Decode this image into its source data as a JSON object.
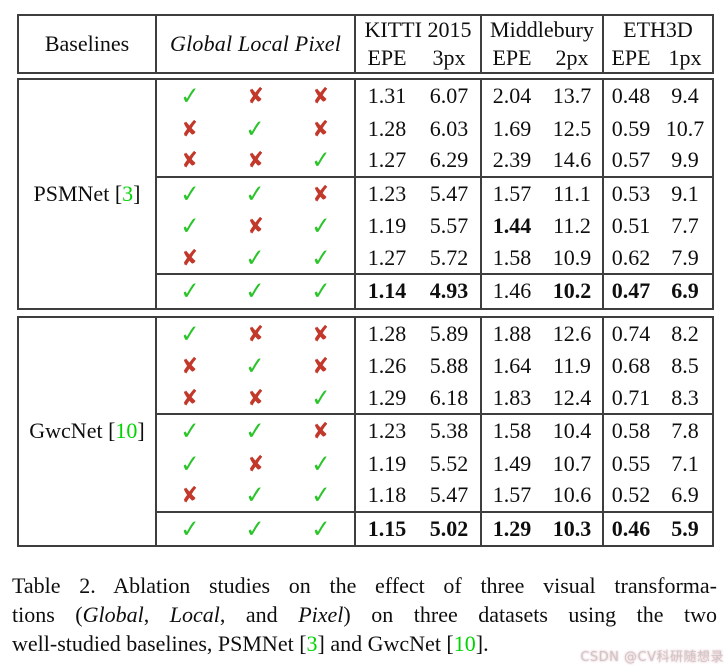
{
  "colors": {
    "check": "#2bc42b",
    "cross": "#c2382a",
    "ref_green": "#00d400",
    "border": "#3e3e3e",
    "watermark": "#c9c9c9"
  },
  "glyphs": {
    "check": "✓",
    "cross": "✘"
  },
  "table": {
    "corner_label": "Baselines",
    "transforms_label": "Global Local Pixel",
    "groups": [
      {
        "name": "KITTI 2015",
        "epe": "EPE",
        "px": "3px"
      },
      {
        "name": "Middlebury",
        "epe": "EPE",
        "px": "2px"
      },
      {
        "name": "ETH3D",
        "epe": "EPE",
        "px": "1px"
      }
    ],
    "sections": [
      {
        "baseline_name": "PSMNet",
        "baseline_ref": "3",
        "rows": [
          {
            "marks": [
              "check",
              "cross",
              "cross"
            ],
            "vals": [
              "1.31",
              "6.07",
              "2.04",
              "13.7",
              "0.48",
              "9.4"
            ],
            "bold": [
              0,
              0,
              0,
              0,
              0,
              0
            ]
          },
          {
            "marks": [
              "cross",
              "check",
              "cross"
            ],
            "vals": [
              "1.28",
              "6.03",
              "1.69",
              "12.5",
              "0.59",
              "10.7"
            ],
            "bold": [
              0,
              0,
              0,
              0,
              0,
              0
            ]
          },
          {
            "marks": [
              "cross",
              "cross",
              "check"
            ],
            "vals": [
              "1.27",
              "6.29",
              "2.39",
              "14.6",
              "0.57",
              "9.9"
            ],
            "bold": [
              0,
              0,
              0,
              0,
              0,
              0
            ]
          },
          {
            "marks": [
              "check",
              "check",
              "cross"
            ],
            "vals": [
              "1.23",
              "5.47",
              "1.57",
              "11.1",
              "0.53",
              "9.1"
            ],
            "bold": [
              0,
              0,
              0,
              0,
              0,
              0
            ]
          },
          {
            "marks": [
              "check",
              "cross",
              "check"
            ],
            "vals": [
              "1.19",
              "5.57",
              "1.44",
              "11.2",
              "0.51",
              "7.7"
            ],
            "bold": [
              0,
              0,
              1,
              0,
              0,
              0
            ]
          },
          {
            "marks": [
              "cross",
              "check",
              "check"
            ],
            "vals": [
              "1.27",
              "5.72",
              "1.58",
              "10.9",
              "0.62",
              "7.9"
            ],
            "bold": [
              0,
              0,
              0,
              0,
              0,
              0
            ]
          },
          {
            "marks": [
              "check",
              "check",
              "check"
            ],
            "vals": [
              "1.14",
              "4.93",
              "1.46",
              "10.2",
              "0.47",
              "6.9"
            ],
            "bold": [
              1,
              1,
              0,
              1,
              1,
              1
            ]
          }
        ]
      },
      {
        "baseline_name": "GwcNet",
        "baseline_ref": "10",
        "rows": [
          {
            "marks": [
              "check",
              "cross",
              "cross"
            ],
            "vals": [
              "1.28",
              "5.89",
              "1.88",
              "12.6",
              "0.74",
              "8.2"
            ],
            "bold": [
              0,
              0,
              0,
              0,
              0,
              0
            ]
          },
          {
            "marks": [
              "cross",
              "check",
              "cross"
            ],
            "vals": [
              "1.26",
              "5.88",
              "1.64",
              "11.9",
              "0.68",
              "8.5"
            ],
            "bold": [
              0,
              0,
              0,
              0,
              0,
              0
            ]
          },
          {
            "marks": [
              "cross",
              "cross",
              "check"
            ],
            "vals": [
              "1.29",
              "6.18",
              "1.83",
              "12.4",
              "0.71",
              "8.3"
            ],
            "bold": [
              0,
              0,
              0,
              0,
              0,
              0
            ]
          },
          {
            "marks": [
              "check",
              "check",
              "cross"
            ],
            "vals": [
              "1.23",
              "5.38",
              "1.58",
              "10.4",
              "0.58",
              "7.8"
            ],
            "bold": [
              0,
              0,
              0,
              0,
              0,
              0
            ]
          },
          {
            "marks": [
              "check",
              "cross",
              "check"
            ],
            "vals": [
              "1.19",
              "5.52",
              "1.49",
              "10.7",
              "0.55",
              "7.1"
            ],
            "bold": [
              0,
              0,
              0,
              0,
              0,
              0
            ]
          },
          {
            "marks": [
              "cross",
              "check",
              "check"
            ],
            "vals": [
              "1.18",
              "5.47",
              "1.57",
              "10.6",
              "0.52",
              "6.9"
            ],
            "bold": [
              0,
              0,
              0,
              0,
              0,
              0
            ]
          },
          {
            "marks": [
              "check",
              "check",
              "check"
            ],
            "vals": [
              "1.15",
              "5.02",
              "1.29",
              "10.3",
              "0.46",
              "5.9"
            ],
            "bold": [
              1,
              1,
              1,
              1,
              1,
              1
            ]
          }
        ]
      }
    ]
  },
  "caption": {
    "lines": [
      [
        {
          "t": "Table 2.  Ablation studies on the effect of three visual transforma-",
          "s": "p"
        }
      ],
      [
        {
          "t": "tions (",
          "s": "p"
        },
        {
          "t": "Global",
          "s": "i"
        },
        {
          "t": ", ",
          "s": "p"
        },
        {
          "t": "Local",
          "s": "i"
        },
        {
          "t": ", and ",
          "s": "p"
        },
        {
          "t": "Pixel",
          "s": "i"
        },
        {
          "t": ") on three datasets using the two",
          "s": "p"
        }
      ],
      [
        {
          "t": "well-studied baselines, PSMNet [",
          "s": "p"
        },
        {
          "t": "3",
          "s": "r"
        },
        {
          "t": "] and GwcNet [",
          "s": "p"
        },
        {
          "t": "10",
          "s": "r"
        },
        {
          "t": "].",
          "s": "p"
        }
      ]
    ]
  },
  "watermark": "CSDN @CV科研随想录"
}
